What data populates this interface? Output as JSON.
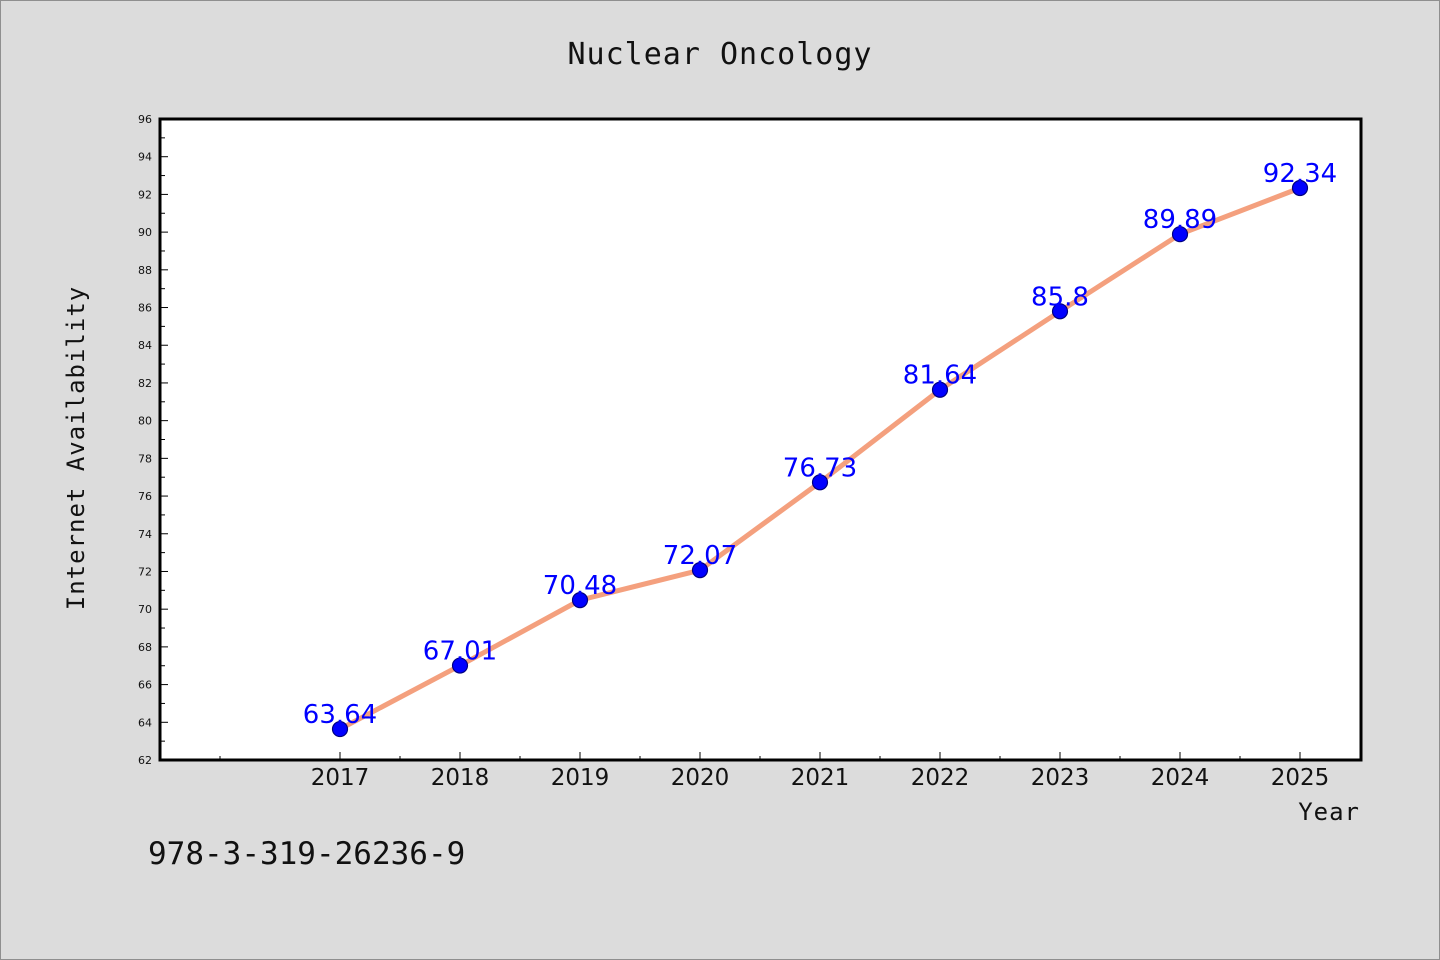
{
  "chart_data": {
    "type": "line",
    "title": "Nuclear Oncology",
    "xlabel": "Year",
    "ylabel": "Internet Availability",
    "categories": [
      "2017",
      "2018",
      "2019",
      "2020",
      "2021",
      "2022",
      "2023",
      "2024",
      "2025"
    ],
    "series": [
      {
        "values": [
          63.64,
          67.01,
          70.48,
          72.07,
          76.73,
          81.64,
          85.8,
          89.89,
          92.34
        ],
        "data_labels": [
          "63.64",
          "67.01",
          "70.48",
          "72.07",
          "76.73",
          "81.64",
          "85.8",
          "89.89",
          "92.34"
        ],
        "line_color": "#f4a07e",
        "marker_color": "#0000ff",
        "marker_edge_color": "#000080"
      }
    ],
    "ylim": [
      62,
      96
    ],
    "yticks": [
      62,
      64,
      66,
      68,
      70,
      72,
      74,
      76,
      78,
      80,
      82,
      84,
      86,
      88,
      90,
      92,
      94,
      96
    ],
    "grid": false,
    "legend": "none",
    "background_color": "#dcdcdc",
    "plot_background_color": "#ffffff",
    "label_color": "#0000ff"
  },
  "footer": {
    "identifier": "978-3-319-26236-9"
  }
}
